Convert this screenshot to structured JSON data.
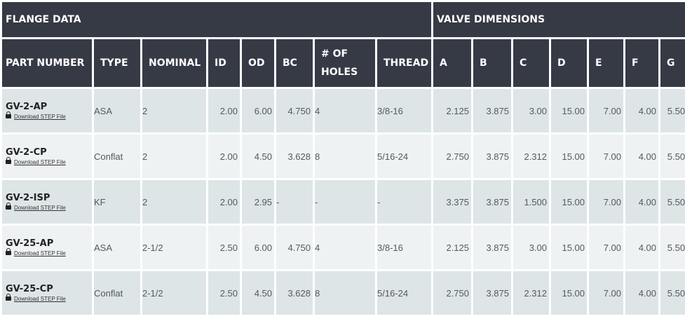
{
  "groups": {
    "flange": "FLANGE DATA",
    "valve": "VALVE DIMENSIONS"
  },
  "columns": {
    "part": "PART NUMBER",
    "type": "TYPE",
    "nominal": "NOMINAL",
    "id": "ID",
    "od": "OD",
    "bc": "BC",
    "holes": "# OF HOLES",
    "thread": "THREAD",
    "a": "A",
    "b": "B",
    "c": "C",
    "d": "D",
    "e": "E",
    "f": "F",
    "g": "G"
  },
  "download_label": "Download STEP File",
  "rows": [
    {
      "part": "GV-2-AP",
      "type": "ASA",
      "nominal": "2",
      "id": "2.00",
      "od": "6.00",
      "bc": "4.750",
      "holes": "4",
      "thread": "3/8-16",
      "a": "2.125",
      "b": "3.875",
      "c": "3.00",
      "d": "15.00",
      "e": "7.00",
      "f": "4.00",
      "g": "5.50"
    },
    {
      "part": "GV-2-CP",
      "type": "Conflat",
      "nominal": "2",
      "id": "2.00",
      "od": "4.50",
      "bc": "3.628",
      "holes": "8",
      "thread": "5/16-24",
      "a": "2.750",
      "b": "3.875",
      "c": "2.312",
      "d": "15.00",
      "e": "7.00",
      "f": "4.00",
      "g": "5.50"
    },
    {
      "part": "GV-2-ISP",
      "type": "KF",
      "nominal": "2",
      "id": "2.00",
      "od": "2.95",
      "bc": "-",
      "holes": "-",
      "thread": "-",
      "a": "3.375",
      "b": "3.875",
      "c": "1.500",
      "d": "15.00",
      "e": "7.00",
      "f": "4.00",
      "g": "5.50"
    },
    {
      "part": "GV-25-AP",
      "type": "ASA",
      "nominal": "2-1/2",
      "id": "2.50",
      "od": "6.00",
      "bc": "4.750",
      "holes": "4",
      "thread": "3/8-16",
      "a": "2.125",
      "b": "3.875",
      "c": "3.00",
      "d": "15.00",
      "e": "7.00",
      "f": "4.00",
      "g": "5.50"
    },
    {
      "part": "GV-25-CP",
      "type": "Conflat",
      "nominal": "2-1/2",
      "id": "2.50",
      "od": "4.50",
      "bc": "3.628",
      "holes": "8",
      "thread": "5/16-24",
      "a": "2.750",
      "b": "3.875",
      "c": "2.312",
      "d": "15.00",
      "e": "7.00",
      "f": "4.00",
      "g": "5.50"
    }
  ],
  "icons": {
    "download": "lock-icon"
  }
}
